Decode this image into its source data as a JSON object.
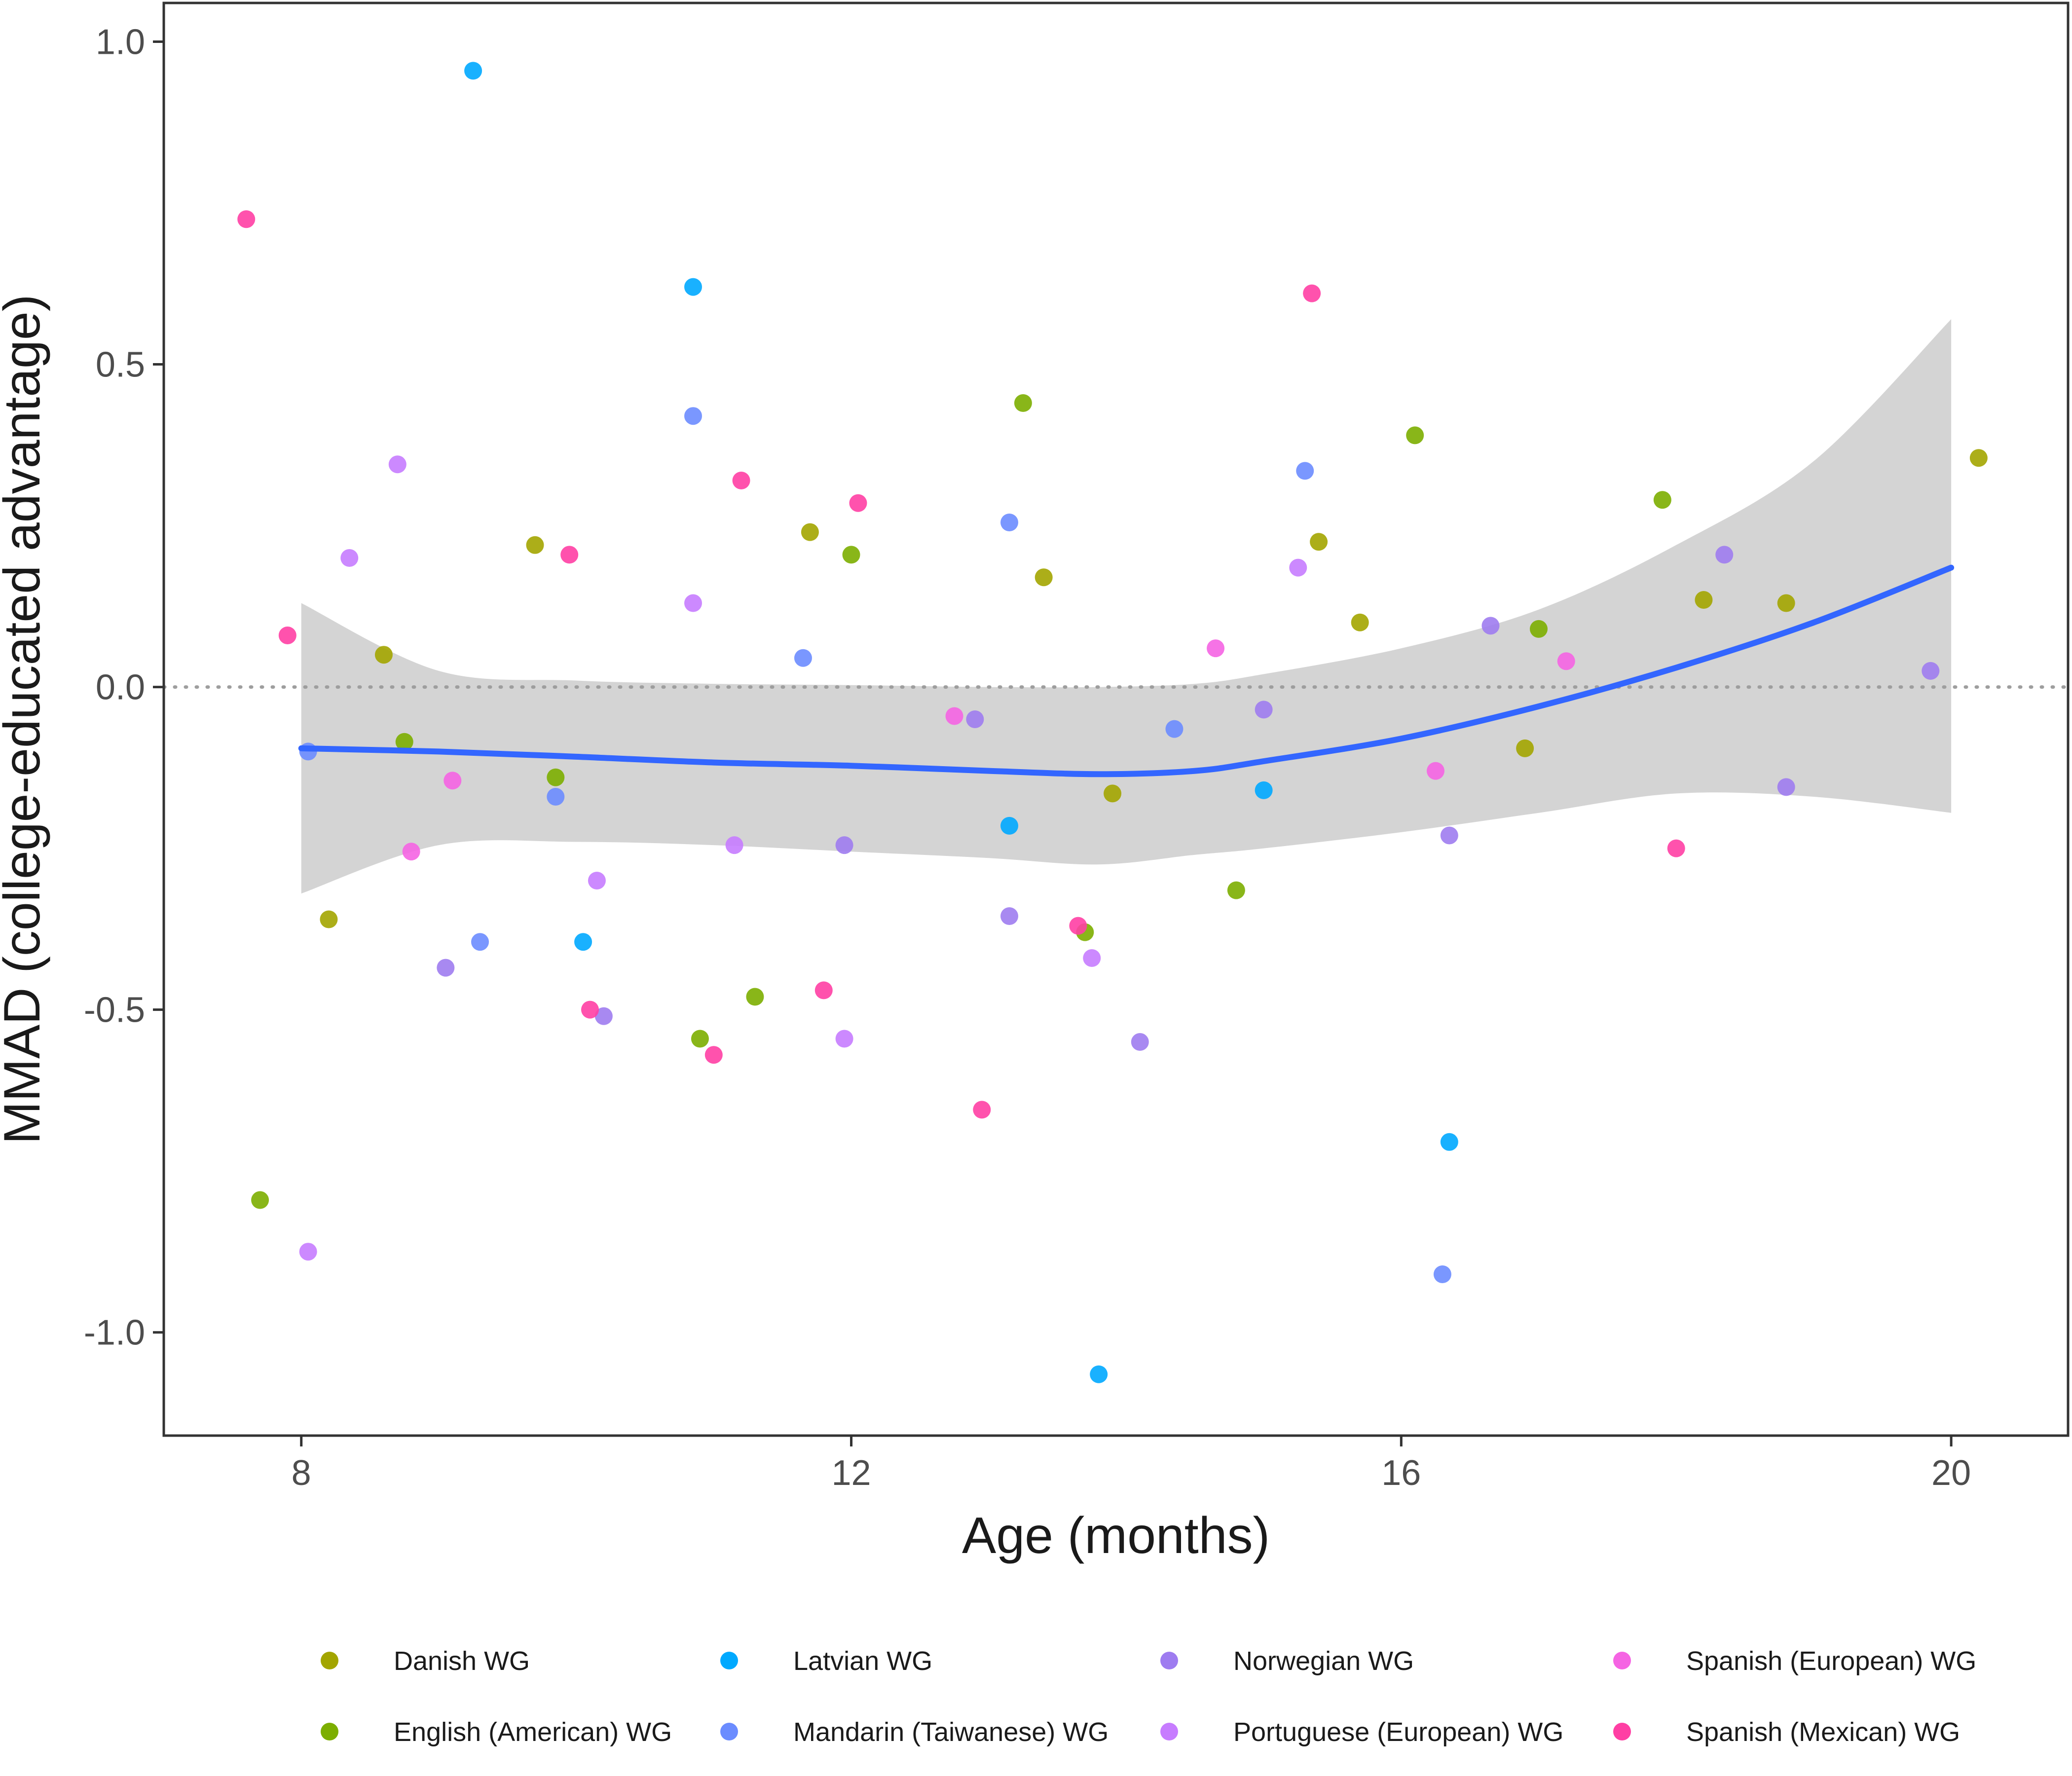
{
  "chart_data": {
    "type": "scatter",
    "xlabel": "Age (months)",
    "ylabel": "MMAD (college-educated advantage)",
    "xlim": [
      7.0,
      20.85
    ],
    "ylim": [
      -1.16,
      1.06
    ],
    "x_ticks": [
      8,
      12,
      16,
      20
    ],
    "y_ticks": [
      1.0,
      0.5,
      0.0,
      -0.5,
      -1.0
    ],
    "y_tick_labels": [
      "1.0",
      "0.5",
      "0.0",
      "-0.5",
      "-1.0"
    ],
    "grid": false,
    "reference_line": {
      "y": 0.0,
      "style": "dotted",
      "color": "#9e9e9e"
    },
    "legend_position": "bottom",
    "series": [
      {
        "name": "Danish WG",
        "color": "#A3A500",
        "points": [
          [
            8.2,
            -0.36
          ],
          [
            8.6,
            0.05
          ],
          [
            9.7,
            0.22
          ],
          [
            11.7,
            0.24
          ],
          [
            13.4,
            0.17
          ],
          [
            13.9,
            -0.165
          ],
          [
            15.4,
            0.225
          ],
          [
            15.7,
            0.1
          ],
          [
            16.9,
            -0.095
          ],
          [
            18.2,
            0.135
          ],
          [
            18.8,
            0.13
          ],
          [
            20.2,
            0.355
          ]
        ]
      },
      {
        "name": "English (American) WG",
        "color": "#7CAE00",
        "points": [
          [
            7.7,
            -0.795
          ],
          [
            8.75,
            -0.085
          ],
          [
            9.85,
            -0.14
          ],
          [
            10.9,
            -0.545
          ],
          [
            11.3,
            -0.48
          ],
          [
            12.0,
            0.205
          ],
          [
            13.25,
            0.44
          ],
          [
            13.7,
            -0.38
          ],
          [
            14.8,
            -0.315
          ],
          [
            16.1,
            0.39
          ],
          [
            17.0,
            0.09
          ],
          [
            17.9,
            0.29
          ]
        ]
      },
      {
        "name": "Latvian WG",
        "color": "#00A9FF",
        "points": [
          [
            9.25,
            0.955
          ],
          [
            10.05,
            -0.395
          ],
          [
            10.85,
            0.62
          ],
          [
            13.15,
            -0.215
          ],
          [
            13.8,
            -1.065
          ],
          [
            15.0,
            -0.16
          ],
          [
            16.35,
            -0.705
          ]
        ]
      },
      {
        "name": "Mandarin (Taiwanese) WG",
        "color": "#6B8CFF",
        "points": [
          [
            8.05,
            -0.1
          ],
          [
            9.3,
            -0.395
          ],
          [
            9.85,
            -0.17
          ],
          [
            10.85,
            0.42
          ],
          [
            11.65,
            0.045
          ],
          [
            13.15,
            0.255
          ],
          [
            14.35,
            -0.065
          ],
          [
            15.3,
            0.335
          ],
          [
            16.3,
            -0.91
          ]
        ]
      },
      {
        "name": "Norwegian WG",
        "color": "#9E7CF0",
        "points": [
          [
            9.05,
            -0.435
          ],
          [
            10.2,
            -0.51
          ],
          [
            11.95,
            -0.245
          ],
          [
            12.9,
            -0.05
          ],
          [
            13.15,
            -0.355
          ],
          [
            14.1,
            -0.55
          ],
          [
            15.0,
            -0.035
          ],
          [
            16.35,
            -0.23
          ],
          [
            16.65,
            0.095
          ],
          [
            18.35,
            0.205
          ],
          [
            18.8,
            -0.155
          ],
          [
            19.85,
            0.025
          ]
        ]
      },
      {
        "name": "Portuguese (European) WG",
        "color": "#C77CFF",
        "points": [
          [
            8.05,
            -0.875
          ],
          [
            8.35,
            0.2
          ],
          [
            8.7,
            0.345
          ],
          [
            10.15,
            -0.3
          ],
          [
            10.85,
            0.13
          ],
          [
            11.15,
            -0.245
          ],
          [
            11.95,
            -0.545
          ],
          [
            13.75,
            -0.42
          ],
          [
            15.25,
            0.185
          ]
        ]
      },
      {
        "name": "Spanish (European) WG",
        "color": "#F564E3",
        "points": [
          [
            8.8,
            -0.255
          ],
          [
            9.1,
            -0.145
          ],
          [
            12.75,
            -0.045
          ],
          [
            14.65,
            0.06
          ],
          [
            16.25,
            -0.13
          ],
          [
            17.2,
            0.04
          ]
        ]
      },
      {
        "name": "Spanish (Mexican) WG",
        "color": "#FF3FA4",
        "points": [
          [
            7.6,
            0.725
          ],
          [
            7.9,
            0.08
          ],
          [
            9.95,
            0.205
          ],
          [
            10.1,
            -0.5
          ],
          [
            11.0,
            -0.57
          ],
          [
            11.2,
            0.32
          ],
          [
            11.8,
            -0.47
          ],
          [
            12.05,
            0.285
          ],
          [
            12.95,
            -0.655
          ],
          [
            13.65,
            -0.37
          ],
          [
            15.35,
            0.61
          ],
          [
            18.0,
            -0.25
          ]
        ]
      }
    ],
    "smooth": {
      "method": "loess",
      "color": "#3366FF",
      "band_color": "#cccccc",
      "x": [
        8.0,
        9.0,
        10.0,
        11.0,
        12.0,
        13.0,
        13.8,
        14.5,
        15.0,
        16.0,
        17.0,
        18.0,
        19.0,
        20.0
      ],
      "y": [
        -0.095,
        -0.1,
        -0.108,
        -0.117,
        -0.122,
        -0.13,
        -0.135,
        -0.13,
        -0.115,
        -0.08,
        -0.03,
        0.03,
        0.1,
        0.185
      ],
      "lower": [
        -0.32,
        -0.245,
        -0.24,
        -0.245,
        -0.255,
        -0.265,
        -0.275,
        -0.26,
        -0.25,
        -0.225,
        -0.195,
        -0.165,
        -0.17,
        -0.195
      ],
      "upper": [
        0.13,
        0.025,
        0.01,
        0.005,
        0.003,
        0.0,
        0.0,
        0.005,
        0.02,
        0.06,
        0.12,
        0.22,
        0.35,
        0.57
      ]
    }
  }
}
